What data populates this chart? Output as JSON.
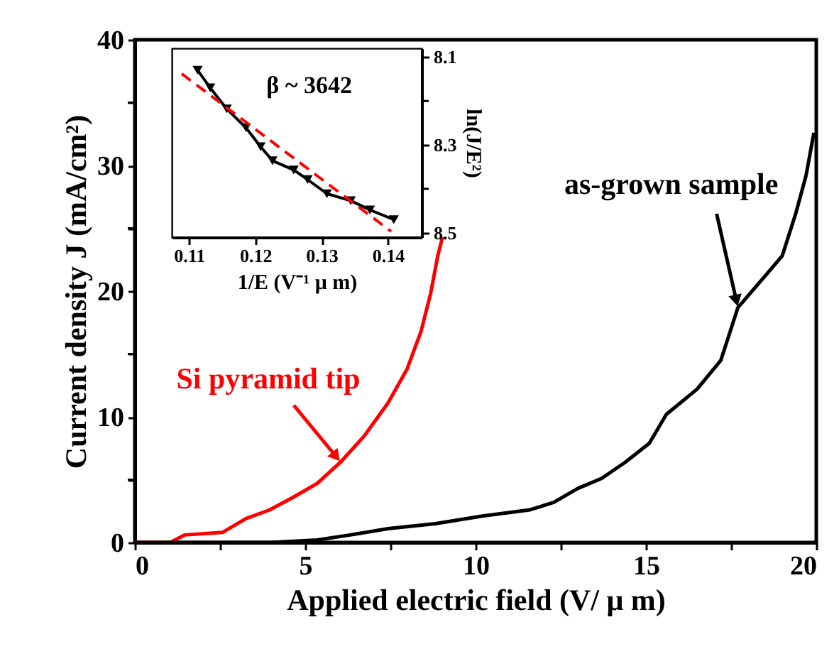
{
  "chart_data": [
    {
      "type": "line",
      "xlabel": "Applied electric field (V/ μ m)",
      "ylabel": "Current density J (mA/cm²)",
      "xlim": [
        0,
        20
      ],
      "ylim": [
        0,
        40
      ],
      "xticks": [
        0,
        {
          "value": 2.5,
          "label": null
        },
        5,
        {
          "value": 7.5,
          "label": null
        },
        10,
        {
          "value": 12.5,
          "label": null
        },
        15,
        {
          "value": 17.5,
          "label": null
        },
        20
      ],
      "yticks": [
        0,
        {
          "value": 5,
          "label": null
        },
        10,
        {
          "value": 15,
          "label": null
        },
        20,
        {
          "value": 25,
          "label": null
        },
        30,
        {
          "value": 35,
          "label": null
        },
        40
      ],
      "grid": false,
      "legend": false,
      "marker": "none",
      "line_style": "solid",
      "series": [
        {
          "color": "#ff0000",
          "x": [
            0,
            1.04,
            1.46,
            2.57,
            3.26,
            3.96,
            4.65,
            5.35,
            6.04,
            6.74,
            7.43,
            7.99,
            8.4,
            8.68,
            8.89,
            9.03
          ],
          "values": [
            0,
            0,
            0.6,
            0.8,
            1.9,
            2.6,
            3.6,
            4.7,
            6.4,
            8.5,
            11.1,
            13.8,
            16.8,
            19.8,
            22.8,
            24.3
          ]
        },
        {
          "color": "#000000",
          "x": [
            0,
            3.96,
            5.35,
            6.32,
            7.43,
            8.82,
            10.2,
            11.6,
            12.3,
            13.0,
            13.7,
            14.4,
            15.1,
            15.6,
            16.5,
            17.2,
            17.7,
            18.4,
            19.0,
            19.4,
            19.7,
            19.93
          ],
          "values": [
            0,
            0,
            0.2,
            0.6,
            1.1,
            1.5,
            2.1,
            2.6,
            3.2,
            4.3,
            5.1,
            6.4,
            7.9,
            10.2,
            12.2,
            14.5,
            18.7,
            20.9,
            22.8,
            26.2,
            29.2,
            32.6
          ]
        }
      ],
      "annotations": [
        {
          "text": "Si pyramid tip",
          "x": 6.04,
          "y": 6.4
        },
        {
          "text": "as-grown sample",
          "x": 17.7,
          "y": 18.7
        }
      ]
    },
    {
      "type": "line",
      "xlabel": "1/E (V⁻¹ μ m)",
      "ylabel": "ln(J/E²)",
      "xlim": [
        0.1074,
        0.1451
      ],
      "ylim": [
        8.51,
        8.08
      ],
      "xticks": [
        0.11,
        0.12,
        0.13,
        0.14
      ],
      "yticks": [
        8.1,
        {
          "value": 8.2,
          "label": null
        },
        8.3,
        {
          "value": 8.4,
          "label": null
        },
        8.5
      ],
      "grid": false,
      "legend": false,
      "series": [
        {
          "color": "#000000",
          "marker": "triangle",
          "line_style": "solid",
          "x": [
            0.1113,
            0.1132,
            0.1157,
            0.1186,
            0.1208,
            0.1226,
            0.1258,
            0.1279,
            0.1308,
            0.1344,
            0.1373,
            0.1409
          ],
          "values": [
            8.13,
            8.17,
            8.218,
            8.261,
            8.304,
            8.336,
            8.357,
            8.379,
            8.411,
            8.427,
            8.448,
            8.47
          ]
        },
        {
          "color": "#ff0000",
          "marker": "none",
          "line_style": "dashed",
          "x": [
            0.1089,
            0.1405
          ],
          "values": [
            8.138,
            8.497
          ]
        }
      ],
      "annotations": [
        "β ~ 3642"
      ]
    }
  ]
}
